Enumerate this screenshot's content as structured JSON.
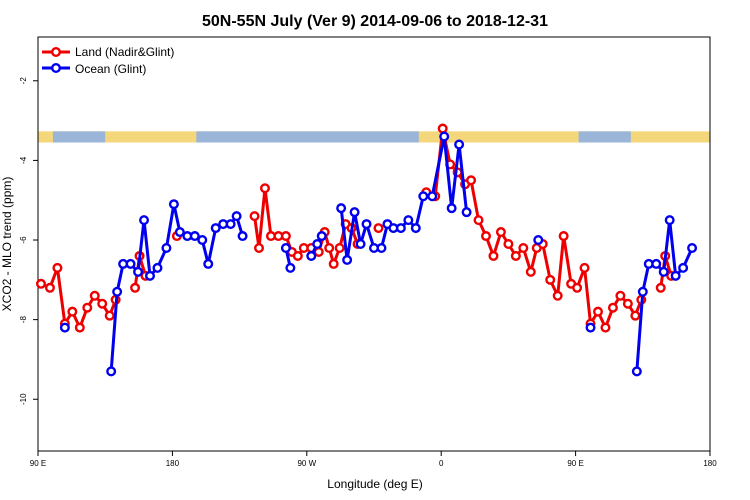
{
  "chart_data": {
    "type": "line",
    "title": "50N-55N July (Ver 9)   2014-09-06 to 2018-12-31",
    "xlabel": "Longitude (deg E)",
    "ylabel": "XCO2 - MLO trend (ppm)",
    "x_ticks": [
      {
        "value": 90,
        "label": "90 E"
      },
      {
        "value": 180,
        "label": "180"
      },
      {
        "value": 270,
        "label": "90 W"
      },
      {
        "value": 360,
        "label": "0"
      },
      {
        "value": 450,
        "label": "90 E"
      },
      {
        "value": 540,
        "label": "180"
      }
    ],
    "y_ticks": [
      {
        "value": -2,
        "label": "-2"
      },
      {
        "value": -4,
        "label": "-4"
      },
      {
        "value": -6,
        "label": "-6"
      },
      {
        "value": -8,
        "label": "-8"
      },
      {
        "value": -10,
        "label": "-10"
      }
    ],
    "xlim": [
      90,
      540
    ],
    "ylim": [
      -11.3,
      -0.9
    ],
    "grid": false,
    "legend_position": "top-left",
    "land_band": {
      "y_range": [
        -3.27,
        -3.55
      ],
      "land_color": "#F5D77B",
      "ocean_color": "#9BB5D9"
    },
    "series": [
      {
        "name": "Land (Nadir&Glint)",
        "color": "#EE0000",
        "points": [
          [
            92,
            -7.1
          ],
          [
            98,
            -7.2
          ],
          [
            103,
            -6.7
          ],
          [
            108,
            -8.1
          ],
          [
            113,
            -7.8
          ],
          [
            118,
            -8.2
          ],
          [
            123,
            -7.7
          ],
          [
            128,
            -7.4
          ],
          [
            133,
            -7.6
          ],
          [
            138,
            -7.9
          ],
          [
            142,
            -7.5
          ],
          [
            155,
            -7.2
          ],
          [
            158,
            -6.4
          ],
          [
            162,
            -6.9
          ],
          [
            183,
            -5.9
          ],
          [
            235,
            -5.4
          ],
          [
            238,
            -6.2
          ],
          [
            242,
            -4.7
          ],
          [
            246,
            -5.9
          ],
          [
            251,
            -5.9
          ],
          [
            256,
            -5.9
          ],
          [
            260,
            -6.3
          ],
          [
            264,
            -6.4
          ],
          [
            268,
            -6.2
          ],
          [
            273,
            -6.2
          ],
          [
            278,
            -6.3
          ],
          [
            282,
            -5.8
          ],
          [
            285,
            -6.2
          ],
          [
            288,
            -6.6
          ],
          [
            292,
            -6.2
          ],
          [
            296,
            -5.6
          ],
          [
            300,
            -5.7
          ],
          [
            304,
            -6.1
          ],
          [
            318,
            -5.7
          ],
          [
            350,
            -4.8
          ],
          [
            356,
            -4.9
          ],
          [
            361,
            -3.2
          ],
          [
            366,
            -4.1
          ],
          [
            371,
            -4.3
          ],
          [
            376,
            -4.6
          ],
          [
            380,
            -4.5
          ],
          [
            385,
            -5.5
          ],
          [
            390,
            -5.9
          ],
          [
            395,
            -6.4
          ],
          [
            400,
            -5.8
          ],
          [
            405,
            -6.1
          ],
          [
            410,
            -6.4
          ],
          [
            415,
            -6.2
          ],
          [
            420,
            -6.8
          ],
          [
            424,
            -6.2
          ],
          [
            428,
            -6.1
          ],
          [
            433,
            -7.0
          ],
          [
            438,
            -7.4
          ],
          [
            442,
            -5.9
          ],
          [
            447,
            -7.1
          ],
          [
            451,
            -7.2
          ],
          [
            456,
            -6.7
          ],
          [
            460,
            -8.1
          ],
          [
            465,
            -7.8
          ],
          [
            470,
            -8.2
          ],
          [
            475,
            -7.7
          ],
          [
            480,
            -7.4
          ],
          [
            485,
            -7.6
          ],
          [
            490,
            -7.9
          ],
          [
            494,
            -7.5
          ],
          [
            507,
            -7.2
          ],
          [
            510,
            -6.4
          ],
          [
            514,
            -6.9
          ]
        ]
      },
      {
        "name": "Ocean (Glint)",
        "color": "#0000EE",
        "points": [
          [
            108,
            -8.2
          ],
          [
            139,
            -9.3
          ],
          [
            143,
            -7.3
          ],
          [
            147,
            -6.6
          ],
          [
            152,
            -6.6
          ],
          [
            157,
            -6.8
          ],
          [
            161,
            -5.5
          ],
          [
            165,
            -6.9
          ],
          [
            170,
            -6.7
          ],
          [
            176,
            -6.2
          ],
          [
            181,
            -5.1
          ],
          [
            185,
            -5.8
          ],
          [
            190,
            -5.9
          ],
          [
            195,
            -5.9
          ],
          [
            200,
            -6.0
          ],
          [
            204,
            -6.6
          ],
          [
            209,
            -5.7
          ],
          [
            214,
            -5.6
          ],
          [
            219,
            -5.6
          ],
          [
            223,
            -5.4
          ],
          [
            227,
            -5.9
          ],
          [
            256,
            -6.2
          ],
          [
            259,
            -6.7
          ],
          [
            273,
            -6.4
          ],
          [
            277,
            -6.1
          ],
          [
            280,
            -5.9
          ],
          [
            293,
            -5.2
          ],
          [
            297,
            -6.5
          ],
          [
            302,
            -5.3
          ],
          [
            306,
            -6.1
          ],
          [
            310,
            -5.6
          ],
          [
            315,
            -6.2
          ],
          [
            320,
            -6.2
          ],
          [
            324,
            -5.6
          ],
          [
            328,
            -5.7
          ],
          [
            333,
            -5.7
          ],
          [
            338,
            -5.5
          ],
          [
            343,
            -5.7
          ],
          [
            348,
            -4.9
          ],
          [
            354,
            -4.9
          ],
          [
            362,
            -3.4
          ],
          [
            367,
            -5.2
          ],
          [
            372,
            -3.6
          ],
          [
            377,
            -5.3
          ],
          [
            425,
            -6.0
          ],
          [
            491,
            -9.3
          ],
          [
            495,
            -7.3
          ],
          [
            499,
            -6.6
          ],
          [
            504,
            -6.6
          ],
          [
            509,
            -6.8
          ],
          [
            513,
            -5.5
          ],
          [
            517,
            -6.9
          ],
          [
            522,
            -6.7
          ],
          [
            528,
            -6.2
          ],
          [
            460,
            -8.2
          ]
        ]
      }
    ]
  }
}
